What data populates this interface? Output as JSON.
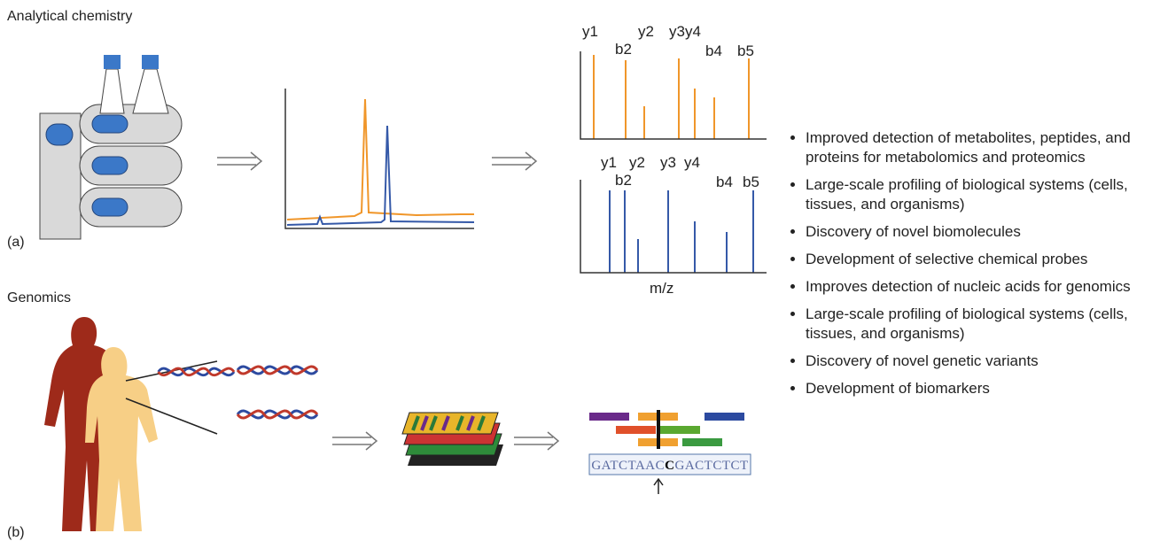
{
  "panel_a": {
    "title": "Analytical chemistry",
    "tag": "(a)",
    "spectrum_top": {
      "labels": [
        "y1",
        "y2",
        "y3y4",
        "b2",
        "b4",
        "b5"
      ]
    },
    "spectrum_bottom": {
      "labels": [
        "y1",
        "y2",
        "y3",
        "y4",
        "b2",
        "b4",
        "b5"
      ],
      "axis_label": "m/z"
    }
  },
  "panel_b": {
    "title": "Genomics",
    "tag": "(b)",
    "sequence": {
      "before": "GATCTAAC",
      "variant": "C",
      "after": "GACTCTCT"
    }
  },
  "bullets": [
    "Improved detection of metabolites, peptides, and proteins for metabolomics and proteomics",
    "Large-scale profiling of biological systems (cells, tissues, and organisms)",
    "Discovery of novel biomolecules",
    "Development of selective chemical probes",
    "Improves detection of nucleic acids for genomics",
    "Large-scale profiling of biological systems (cells, tissues, and organisms)",
    "Discovery of novel genetic variants",
    "Development of biomarkers"
  ]
}
